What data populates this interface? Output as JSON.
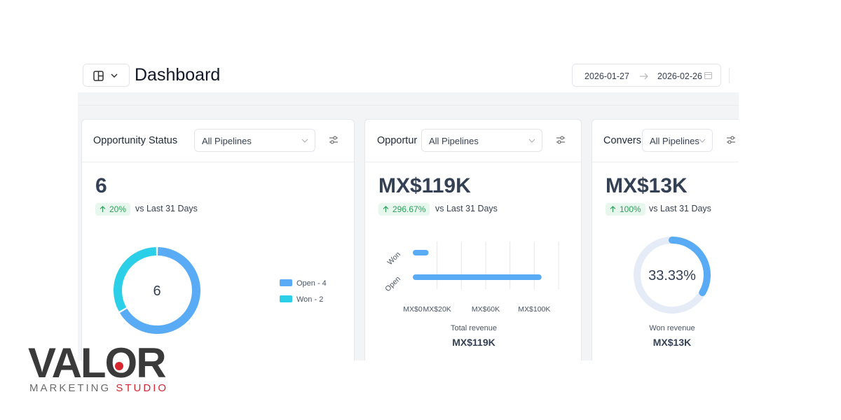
{
  "header": {
    "title": "Dashboard",
    "date_start": "2026-01-27",
    "date_end": "2026-02-26"
  },
  "cards": [
    {
      "title": "Opportunity Status",
      "filter": "All Pipelines",
      "value": "6",
      "change": "20%",
      "comparison": "vs Last 31 Days",
      "chart": {
        "type": "donut",
        "center_label": "6",
        "segments": [
          {
            "name": "Open - 4",
            "value": 4,
            "color": "#5aabf5"
          },
          {
            "name": "Won - 2",
            "value": 2,
            "color": "#2ccfe8"
          }
        ]
      }
    },
    {
      "title": "Opportur",
      "filter": "All Pipelines",
      "value": "MX$119K",
      "change": "296.67%",
      "comparison": "vs Last 31 Days",
      "chart": {
        "type": "bar",
        "categories": [
          "Won",
          "Open"
        ],
        "values": [
          13000,
          106000
        ],
        "color": "#5aabf5",
        "xlim": [
          0,
          120000
        ],
        "xticks": [
          {
            "value": 0,
            "label": "MX$0"
          },
          {
            "value": 20000,
            "label": "MX$20K"
          },
          {
            "value": 60000,
            "label": "MX$60K"
          },
          {
            "value": 100000,
            "label": "MX$100K"
          }
        ],
        "gridlines": [
          20000,
          40000,
          60000,
          80000,
          100000,
          120000
        ],
        "caption": "Total revenue",
        "caption_value": "MX$119K"
      }
    },
    {
      "title": "Convers",
      "filter": "All Pipelines",
      "value": "MX$13K",
      "change": "100%",
      "comparison": "vs Last 31 Days",
      "chart": {
        "type": "gauge",
        "value": 33.33,
        "value_label": "33.33%",
        "range": [
          0,
          100
        ],
        "color": "#5aabf5",
        "track_color": "#e5ecf7",
        "caption": "Won revenue",
        "caption_value": "MX$13K"
      }
    }
  ],
  "logo": {
    "name": "VALOR",
    "line_1": "MARKETING",
    "line_2": "STUDIO"
  }
}
